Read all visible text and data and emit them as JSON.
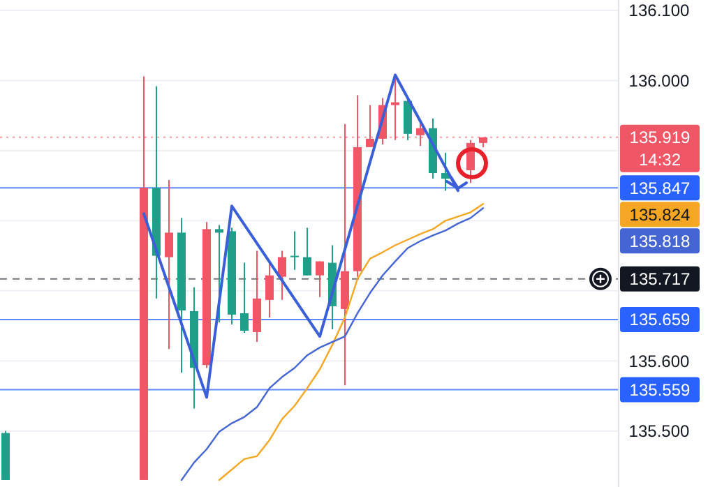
{
  "chart_data": {
    "type": "candlestick",
    "categories": [
      null,
      null,
      null,
      null,
      null,
      null,
      null,
      null,
      null,
      null,
      null,
      null,
      null,
      null,
      null,
      null,
      null,
      null,
      null,
      null,
      null,
      null,
      null,
      null,
      null,
      null,
      null,
      null,
      null,
      null,
      null,
      null,
      null,
      null,
      null,
      null,
      null,
      null,
      null,
      null,
      null,
      null,
      null,
      null,
      null,
      null,
      null,
      null
    ],
    "ohlc": [
      [
        135.497,
        135.5,
        135.43,
        135.43
      ],
      null,
      null,
      null,
      null,
      null,
      null,
      null,
      null,
      null,
      null,
      [
        135.43,
        136.006,
        135.43,
        135.847
      ],
      [
        135.847,
        135.992,
        135.689,
        135.75
      ],
      [
        135.748,
        135.858,
        135.617,
        135.783
      ],
      [
        135.783,
        135.804,
        135.583,
        135.672
      ],
      [
        135.671,
        135.705,
        135.532,
        135.59
      ],
      [
        135.594,
        135.798,
        135.59,
        135.788
      ],
      [
        135.788,
        135.794,
        135.655,
        135.783
      ],
      [
        135.785,
        135.79,
        135.652,
        135.666
      ],
      [
        135.668,
        135.74,
        135.64,
        135.643
      ],
      [
        135.641,
        135.757,
        135.627,
        135.689
      ],
      [
        135.687,
        135.74,
        135.662,
        135.722
      ],
      [
        135.72,
        135.757,
        135.687,
        135.748
      ],
      [
        135.75,
        135.785,
        135.73,
        135.748
      ],
      [
        135.748,
        135.79,
        135.722,
        135.722
      ],
      [
        135.722,
        135.742,
        135.691,
        135.742
      ],
      [
        135.74,
        135.765,
        135.645,
        135.678
      ],
      [
        135.674,
        135.938,
        135.565,
        135.728
      ],
      [
        135.728,
        135.979,
        135.72,
        135.905
      ],
      [
        135.905,
        135.965,
        135.905,
        135.917
      ],
      [
        135.917,
        135.975,
        135.909,
        135.965
      ],
      [
        135.965,
        136.008,
        135.915,
        135.969
      ],
      [
        135.971,
        135.975,
        135.915,
        135.924
      ],
      [
        135.922,
        135.944,
        135.907,
        135.932
      ],
      [
        135.932,
        135.946,
        135.86,
        135.868
      ],
      [
        135.868,
        135.897,
        135.843,
        135.86
      ],
      null,
      [
        135.872,
        135.915,
        135.854,
        135.911
      ],
      [
        135.911,
        135.919,
        135.905,
        135.919
      ],
      null,
      null,
      null,
      null,
      null,
      null,
      null,
      null,
      null
    ],
    "colors": [
      "#1f9e89",
      null,
      null,
      null,
      null,
      null,
      null,
      null,
      null,
      null,
      null,
      "#f05766",
      "#1f9e89",
      "#f05766",
      "#1f9e89",
      "#1f9e89",
      "#f05766",
      "#1f9e89",
      "#1f9e89",
      "#1f9e89",
      "#f05766",
      "#f05766",
      "#f05766",
      "#1f9e89",
      "#1f9e89",
      "#f05766",
      "#1f9e89",
      "#f05766",
      "#f05766",
      "#f05766",
      "#f05766",
      "#f05766",
      "#1f9e89",
      "#f05766",
      "#1f9e89",
      "#1f9e89",
      null,
      "#f05766",
      "#f05766",
      null,
      null,
      null,
      null,
      null,
      null,
      null,
      null,
      null
    ],
    "series": [
      {
        "type": "line",
        "color": "#f5a623",
        "values": [
          null,
          null,
          null,
          null,
          null,
          null,
          null,
          null,
          null,
          null,
          null,
          null,
          null,
          null,
          null,
          null,
          null,
          135.43,
          null,
          135.46,
          135.464,
          135.487,
          135.517,
          135.536,
          135.561,
          135.588,
          135.623,
          135.662,
          135.717,
          135.746,
          135.755,
          135.765,
          135.773,
          135.781,
          135.788,
          135.8,
          135.806,
          135.812,
          135.824,
          null,
          null,
          null,
          null,
          null,
          null,
          null,
          null,
          null
        ]
      },
      {
        "type": "line",
        "color": "#4566d2",
        "values": [
          null,
          null,
          null,
          null,
          null,
          null,
          null,
          null,
          null,
          null,
          null,
          null,
          null,
          null,
          135.43,
          135.455,
          135.474,
          135.499,
          135.511,
          135.52,
          135.534,
          135.561,
          135.577,
          135.59,
          135.608,
          135.619,
          135.627,
          135.635,
          135.668,
          135.697,
          135.722,
          135.742,
          135.761,
          135.771,
          135.779,
          135.786,
          135.796,
          135.804,
          135.818,
          null,
          null,
          null,
          null,
          null,
          null,
          null,
          null,
          null
        ]
      },
      {
        "type": "line",
        "color": "#3a5fd8",
        "values": [
          null,
          null,
          null,
          null,
          null,
          null,
          null,
          null,
          null,
          null,
          null,
          135.81,
          null,
          null,
          null,
          null,
          135.548,
          null,
          135.821,
          null,
          null,
          null,
          null,
          null,
          null,
          135.635,
          null,
          null,
          null,
          null,
          null,
          136.008,
          null,
          null,
          null,
          null,
          135.843,
          null,
          null,
          null,
          null,
          null,
          null,
          null,
          null,
          null,
          null,
          null
        ]
      }
    ],
    "ylim": [
      135.42,
      136.115
    ],
    "yticks": [
      {
        "value": 135.5,
        "label": "135.500"
      },
      {
        "value": 135.6,
        "label": "135.600"
      },
      {
        "value": 135.7,
        "label": null
      },
      {
        "value": 135.8,
        "label": null
      },
      {
        "value": 135.9,
        "label": null
      },
      {
        "value": 136.0,
        "label": "136.000"
      },
      {
        "value": 136.1,
        "label": "136.100"
      }
    ],
    "grid": "y",
    "ref_lines": [
      {
        "axis": "y",
        "value": 135.919,
        "label": "135.919",
        "color": "#f05766",
        "line_style": "dotted"
      },
      {
        "axis": "y",
        "value": 135.847,
        "label": "135.847",
        "color": "#2962ff",
        "line_style": "solid"
      },
      {
        "axis": "y",
        "value": 135.717,
        "label": "135.717",
        "color": "#131722",
        "line_style": "dashed"
      },
      {
        "axis": "y",
        "value": 135.659,
        "label": "135.659",
        "color": "#2962ff",
        "line_style": "solid"
      },
      {
        "axis": "y",
        "value": 135.559,
        "label": "135.559",
        "color": "#2962ff",
        "line_style": "solid"
      }
    ],
    "annotations": [
      "14:32",
      "135.824",
      "135.818"
    ]
  }
}
